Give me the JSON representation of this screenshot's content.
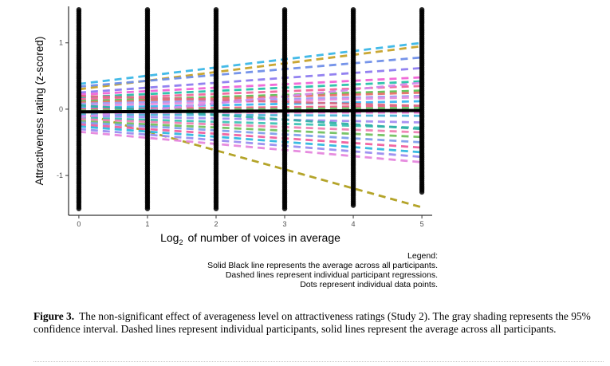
{
  "chart_data": {
    "type": "line",
    "xlabel_main": "Log",
    "xlabel_sub": "2",
    "xlabel_rest": "of number of voices in average",
    "ylabel": "Attractiveness rating (z-scored)",
    "xlim": [
      -0.15,
      5.15
    ],
    "ylim": [
      -1.6,
      1.55
    ],
    "x_ticks": [
      0,
      1,
      2,
      3,
      4,
      5
    ],
    "y_ticks": [
      -1,
      0,
      1
    ],
    "grid": false,
    "dots": {
      "x": [
        0,
        1,
        2,
        3,
        4,
        5
      ],
      "ymin": [
        -1.5,
        -1.5,
        -1.5,
        -1.5,
        -1.45,
        -1.25
      ],
      "ymax": [
        1.5,
        1.5,
        1.5,
        1.5,
        1.5,
        1.5
      ],
      "color": "#000000"
    },
    "average_line": {
      "x": [
        0,
        5
      ],
      "y": [
        -0.04,
        -0.02
      ],
      "color": "#000000"
    },
    "participant_regressions": [
      {
        "y0": 0.38,
        "y5": 1.0,
        "color": "#3ab7e6"
      },
      {
        "y0": 0.3,
        "y5": 0.95,
        "color": "#c7a32a"
      },
      {
        "y0": 0.34,
        "y5": 0.78,
        "color": "#6f8fe8"
      },
      {
        "y0": -0.05,
        "y5": -1.48,
        "color": "#b0a01f"
      },
      {
        "y0": 0.25,
        "y5": 0.62,
        "color": "#8e7cf0"
      },
      {
        "y0": 0.22,
        "y5": 0.48,
        "color": "#f064d6"
      },
      {
        "y0": 0.18,
        "y5": 0.42,
        "color": "#26c1a8"
      },
      {
        "y0": 0.15,
        "y5": 0.35,
        "color": "#f2669c"
      },
      {
        "y0": 0.12,
        "y5": 0.28,
        "color": "#5ec35a"
      },
      {
        "y0": 0.1,
        "y5": 0.25,
        "color": "#e8706a"
      },
      {
        "y0": 0.08,
        "y5": 0.2,
        "color": "#9ea0f2"
      },
      {
        "y0": 0.05,
        "y5": 0.18,
        "color": "#e58ee0"
      },
      {
        "y0": 0.02,
        "y5": 0.12,
        "color": "#39b6f0"
      },
      {
        "y0": 0.0,
        "y5": 0.05,
        "color": "#f25f8a"
      },
      {
        "y0": -0.02,
        "y5": 0.02,
        "color": "#6bc96a"
      },
      {
        "y0": -0.05,
        "y5": -0.05,
        "color": "#ea76d2"
      },
      {
        "y0": -0.08,
        "y5": -0.1,
        "color": "#4fb4d8"
      },
      {
        "y0": -0.1,
        "y5": -0.2,
        "color": "#a48df2"
      },
      {
        "y0": -0.13,
        "y5": -0.28,
        "color": "#3fc4b5"
      },
      {
        "y0": -0.15,
        "y5": -0.35,
        "color": "#ef7fb3"
      },
      {
        "y0": -0.18,
        "y5": -0.42,
        "color": "#72c160"
      },
      {
        "y0": -0.2,
        "y5": -0.5,
        "color": "#7fa0ec"
      },
      {
        "y0": -0.23,
        "y5": -0.58,
        "color": "#f05fa0"
      },
      {
        "y0": -0.26,
        "y5": -0.65,
        "color": "#30b8e0"
      },
      {
        "y0": -0.3,
        "y5": -0.72,
        "color": "#9a8ef0"
      },
      {
        "y0": -0.34,
        "y5": -0.8,
        "color": "#e586de"
      },
      {
        "y0": 0.2,
        "y5": 0.05,
        "color": "#e06c84"
      },
      {
        "y0": -0.12,
        "y5": 0.4,
        "color": "#d38bea"
      },
      {
        "y0": 0.06,
        "y5": -0.3,
        "color": "#33b0a8"
      }
    ]
  },
  "legend_note": {
    "title": "Legend:",
    "line1": "Solid Black line represents the average across all participants.",
    "line2": "Dashed lines represent individual participant regressions.",
    "line3": "Dots represent individual data points."
  },
  "caption": {
    "label": "Figure 3.",
    "text": "The non-significant effect of averageness level on attractiveness ratings (Study 2). The gray shading represents the 95% confidence interval. Dashed lines represent individual participants, solid lines represent the average across all participants."
  }
}
